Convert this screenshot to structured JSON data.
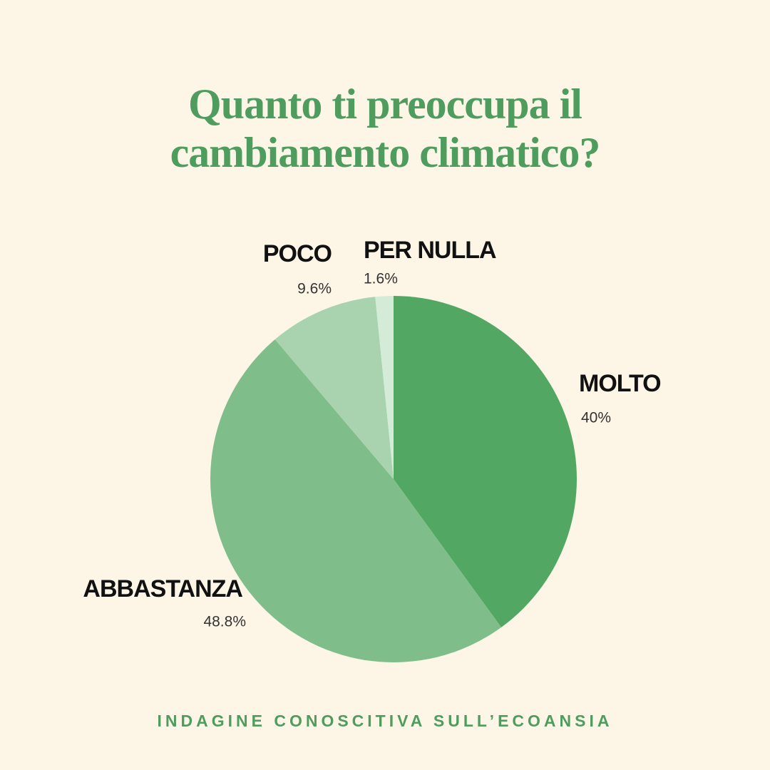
{
  "chart_data": {
    "type": "pie",
    "title": "Quanto ti preoccupa il cambiamento climatico?",
    "categories": [
      "MOLTO",
      "ABBASTANZA",
      "POCO",
      "PER NULLA"
    ],
    "values": [
      40,
      48.8,
      9.6,
      1.6
    ],
    "value_labels": [
      "40%",
      "48.8%",
      "9.6%",
      "1.6%"
    ],
    "colors": [
      "#52a862",
      "#7fbe8a",
      "#a8d3ae",
      "#d3ebd7"
    ],
    "caption": "INDAGINE CONOSCITIVA SULL’ECOANSIA"
  }
}
